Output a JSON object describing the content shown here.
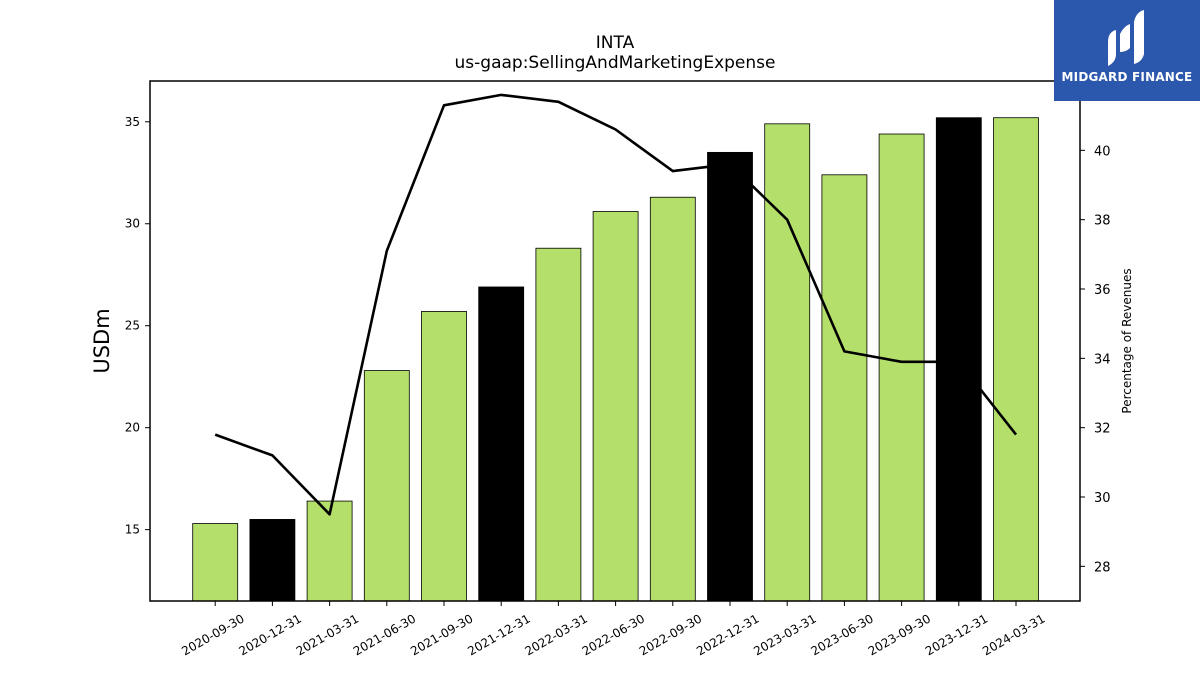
{
  "chart_data": {
    "type": "bar",
    "title": "INTA",
    "subtitle": "us-gaap:SellingAndMarketingExpense",
    "ylabel": "USDm",
    "ylabel_right": "Percentage of Revenues",
    "categories": [
      "2020-09-30",
      "2020-12-31",
      "2021-03-31",
      "2021-06-30",
      "2021-09-30",
      "2021-12-31",
      "2022-03-31",
      "2022-06-30",
      "2022-09-30",
      "2022-12-31",
      "2023-03-31",
      "2023-06-30",
      "2023-09-30",
      "2023-12-31",
      "2024-03-31"
    ],
    "series": [
      {
        "type": "bar",
        "axis": "left",
        "values": [
          15.3,
          15.5,
          16.4,
          22.8,
          25.7,
          26.9,
          28.8,
          30.6,
          31.3,
          33.5,
          34.9,
          32.4,
          34.4,
          35.2,
          35.2
        ],
        "colors": [
          "#b3df6a",
          "#000000",
          "#b3df6a",
          "#b3df6a",
          "#b3df6a",
          "#000000",
          "#b3df6a",
          "#b3df6a",
          "#b3df6a",
          "#000000",
          "#b3df6a",
          "#b3df6a",
          "#b3df6a",
          "#000000",
          "#b3df6a"
        ]
      },
      {
        "type": "line",
        "axis": "right",
        "color": "#000000",
        "values": [
          31.8,
          31.2,
          29.5,
          37.1,
          41.3,
          41.6,
          41.4,
          40.6,
          39.4,
          39.6,
          38.0,
          34.2,
          33.9,
          33.9,
          31.8
        ]
      }
    ],
    "ylim": [
      11.5,
      37.0
    ],
    "yticks": [
      15,
      20,
      25,
      30,
      35
    ],
    "ylim_right": [
      27.0,
      42.0
    ],
    "yticks_right": [
      28,
      30,
      32,
      34,
      36,
      38,
      40
    ],
    "grid": false,
    "legend": "none"
  },
  "logo": {
    "text": "MIDGARD FINANCE",
    "background": "#2b57ad"
  }
}
